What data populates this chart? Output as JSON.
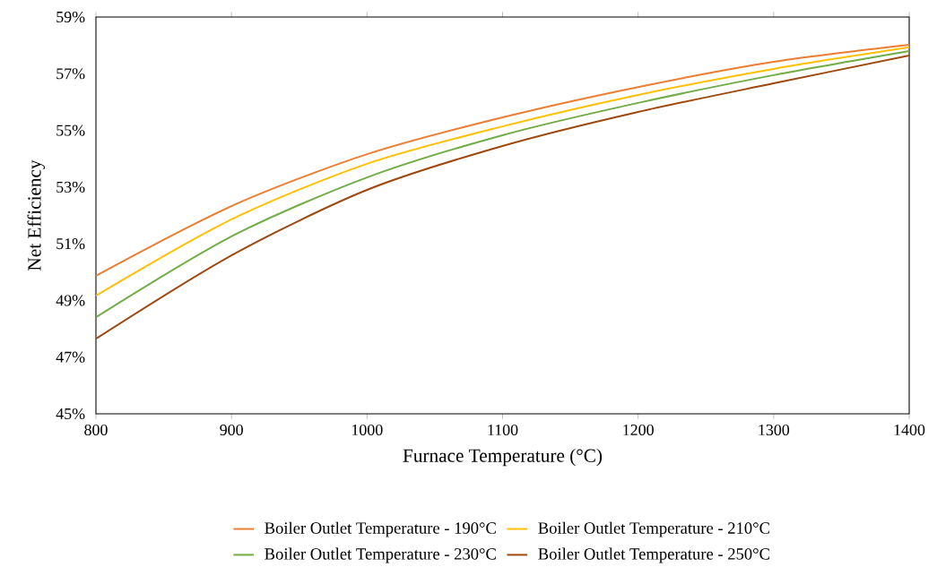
{
  "chart_data": {
    "type": "line",
    "xlabel": "Furnace Temperature (°C)",
    "ylabel": "Net Efficiency",
    "x": [
      800,
      900,
      1000,
      1100,
      1200,
      1300,
      1400
    ],
    "series": [
      {
        "name": "Boiler Outlet Temperature - 190°C",
        "color": "#ed7d31",
        "values": [
          49.87,
          52.33,
          54.16,
          55.46,
          56.53,
          57.42,
          58.02
        ]
      },
      {
        "name": "Boiler Outlet Temperature - 210°C",
        "color": "#ffc000",
        "values": [
          49.17,
          51.86,
          53.82,
          55.14,
          56.25,
          57.17,
          57.93
        ]
      },
      {
        "name": "Boiler Outlet Temperature - 230°C",
        "color": "#70ad47",
        "values": [
          48.41,
          51.26,
          53.34,
          54.83,
          55.97,
          56.95,
          57.8
        ]
      },
      {
        "name": "Boiler Outlet Temperature - 250°C",
        "color": "#9e480e",
        "values": [
          47.65,
          50.59,
          52.9,
          54.45,
          55.65,
          56.66,
          57.64
        ]
      }
    ],
    "xlim": [
      800,
      1400
    ],
    "xticks": [
      800,
      900,
      1000,
      1100,
      1200,
      1300,
      1400
    ],
    "ylim": [
      45,
      59
    ],
    "yticks": [
      {
        "value": 45,
        "label": "45%"
      },
      {
        "value": 47,
        "label": "47%"
      },
      {
        "value": 49,
        "label": "49%"
      },
      {
        "value": 51,
        "label": "51%"
      },
      {
        "value": 53,
        "label": "53%"
      },
      {
        "value": 55,
        "label": "55%"
      },
      {
        "value": 57,
        "label": "57%"
      },
      {
        "value": 59,
        "label": "59%"
      }
    ],
    "grid": false,
    "legend": "bottom",
    "marker": "none",
    "line_style": "solid"
  }
}
